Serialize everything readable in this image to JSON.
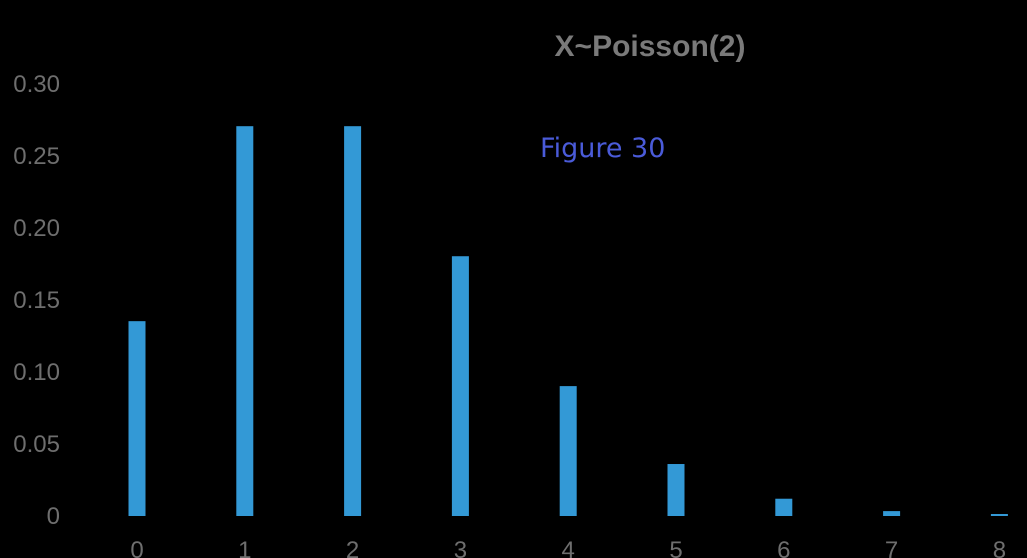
{
  "chart_data": {
    "type": "bar",
    "title": "X~Poisson(2)",
    "annotation": "Figure 30",
    "categories": [
      "0",
      "1",
      "2",
      "3",
      "4",
      "5",
      "6",
      "7",
      "8"
    ],
    "values": [
      0.1353,
      0.2707,
      0.2707,
      0.1804,
      0.0902,
      0.0361,
      0.012,
      0.0034,
      0.0009
    ],
    "ylim": [
      0,
      0.3
    ],
    "yticks": [
      "0",
      "0.05",
      "0.10",
      "0.15",
      "0.20",
      "0.25",
      "0.30"
    ],
    "xlabel": "",
    "ylabel": "",
    "grid": false,
    "legend": "none",
    "bar_color": "#3399d6",
    "background": "#000000"
  }
}
